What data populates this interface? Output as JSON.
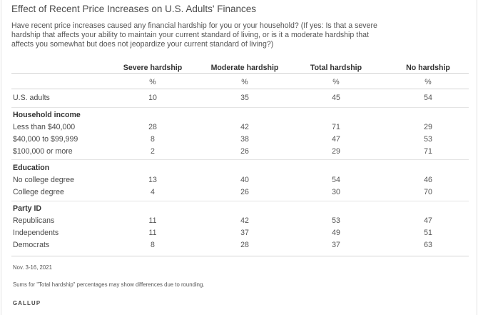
{
  "title": "Effect of Recent Price Increases on U.S. Adults' Finances",
  "question": "Have recent price increases caused any financial hardship for you or your household? (If yes: Is that a severe hardship that affects your ability to maintain your current standard of living, or is it a moderate hardship that affects you somewhat but does not jeopardize your current standard of living?)",
  "chart_data": {
    "type": "table",
    "columns": [
      "Severe hardship",
      "Moderate hardship",
      "Total hardship",
      "No hardship"
    ],
    "units": [
      "%",
      "%",
      "%",
      "%"
    ],
    "rows": [
      {
        "label": "U.S. adults",
        "values": [
          10,
          35,
          45,
          54
        ]
      }
    ],
    "groups": [
      {
        "name": "Household income",
        "rows": [
          {
            "label": "Less than $40,000",
            "values": [
              28,
              42,
              71,
              29
            ]
          },
          {
            "label": "$40,000 to $99,999",
            "values": [
              8,
              38,
              47,
              53
            ]
          },
          {
            "label": "$100,000 or more",
            "values": [
              2,
              26,
              29,
              71
            ]
          }
        ]
      },
      {
        "name": "Education",
        "rows": [
          {
            "label": "No college degree",
            "values": [
              13,
              40,
              54,
              46
            ]
          },
          {
            "label": "College degree",
            "values": [
              4,
              26,
              30,
              70
            ]
          }
        ]
      },
      {
        "name": "Party ID",
        "rows": [
          {
            "label": "Republicans",
            "values": [
              11,
              42,
              53,
              47
            ]
          },
          {
            "label": "Independents",
            "values": [
              11,
              37,
              49,
              51
            ]
          },
          {
            "label": "Democrats",
            "values": [
              8,
              28,
              37,
              63
            ]
          }
        ]
      }
    ]
  },
  "footer": {
    "date": "Nov. 3-16, 2021",
    "note": "Sums for \"Total hardship\" percentages may show differences due to rounding.",
    "brand": "GALLUP"
  },
  "colors": {
    "rule": "#d4d4d4",
    "text": "#555555",
    "heading": "#333333"
  }
}
